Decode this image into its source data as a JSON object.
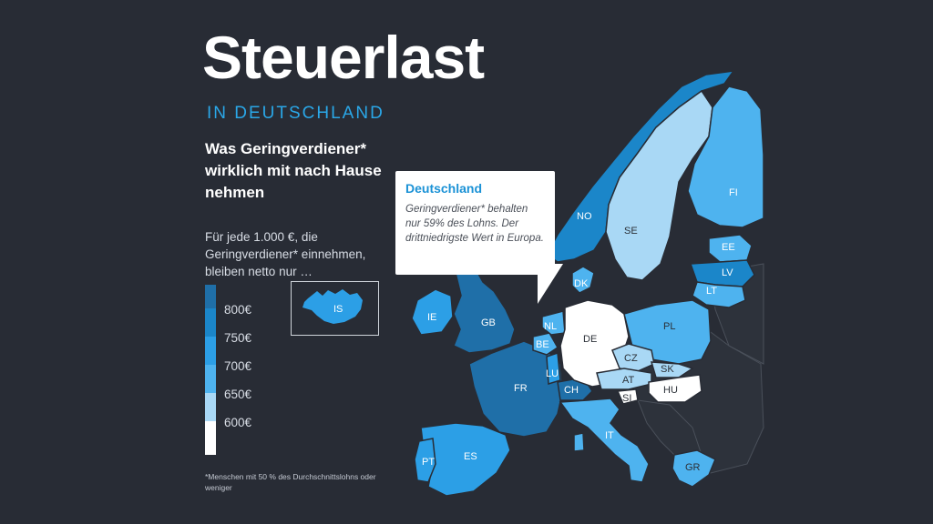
{
  "title": "Steuerlast",
  "subtitle": "IN DEUTSCHLAND",
  "heading": "Was Geringverdiener* wirklich mit nach Hause nehmen",
  "intro": "Für jede 1.000 €, die Geringverdiener* einnehmen, bleiben netto nur …",
  "legend": {
    "labels": [
      "800€",
      "750€",
      "700€",
      "650€",
      "600€"
    ],
    "colors": [
      "#1f6fa8",
      "#1b86c9",
      "#2c9fe6",
      "#4eb3ef",
      "#a9d8f5",
      "#ffffff"
    ]
  },
  "footnote": "*Menschen mit 50 % des Durchschnittslohns oder weniger",
  "callout": {
    "title": "Deutschland",
    "body": "Geringverdiener* behalten nur 59% des Lohns. Der drittniedrigste Wert in Europa."
  },
  "countries": {
    "IS": "IS",
    "FI": "FI",
    "SE": "SE",
    "NO": "NO",
    "EE": "EE",
    "LV": "LV",
    "LT": "LT",
    "DK": "DK",
    "IE": "IE",
    "GB": "GB",
    "NL": "NL",
    "BE": "BE",
    "LU": "LU",
    "DE": "DE",
    "PL": "PL",
    "CZ": "CZ",
    "SK": "SK",
    "AT": "AT",
    "HU": "HU",
    "SI": "SI",
    "CH": "CH",
    "FR": "FR",
    "IT": "IT",
    "ES": "ES",
    "PT": "PT",
    "GR": "GR"
  }
}
